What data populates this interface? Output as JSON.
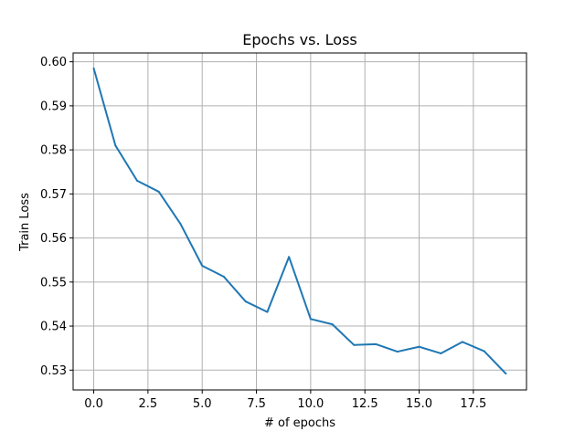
{
  "chart_data": {
    "type": "line",
    "title": "Epochs vs. Loss",
    "xlabel": "# of epochs",
    "ylabel": "Train Loss",
    "xlim": [
      -0.95,
      19.95
    ],
    "ylim": [
      0.5255,
      0.602
    ],
    "x_ticks": [
      0.0,
      2.5,
      5.0,
      7.5,
      10.0,
      12.5,
      15.0,
      17.5
    ],
    "x_tick_labels": [
      "0.0",
      "2.5",
      "5.0",
      "7.5",
      "10.0",
      "12.5",
      "15.0",
      "17.5"
    ],
    "y_ticks": [
      0.53,
      0.54,
      0.55,
      0.56,
      0.57,
      0.58,
      0.59,
      0.6
    ],
    "y_tick_labels": [
      "0.53",
      "0.54",
      "0.55",
      "0.56",
      "0.57",
      "0.58",
      "0.59",
      "0.60"
    ],
    "grid": true,
    "series": [
      {
        "color": "#1f77b4",
        "x": [
          0,
          1,
          2,
          3,
          4,
          5,
          6,
          7,
          8,
          9,
          10,
          11,
          12,
          13,
          14,
          15,
          16,
          17,
          18,
          19
        ],
        "values": [
          0.5985,
          0.581,
          0.573,
          0.5705,
          0.5632,
          0.5537,
          0.5512,
          0.5456,
          0.5432,
          0.5557,
          0.5416,
          0.5404,
          0.5357,
          0.5359,
          0.5342,
          0.5353,
          0.5338,
          0.5364,
          0.5343,
          0.5292
        ]
      }
    ]
  }
}
